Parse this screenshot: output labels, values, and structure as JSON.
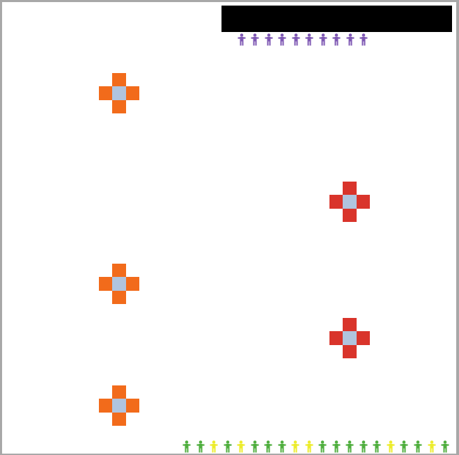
{
  "colors": {
    "border": "#a8a8a8",
    "top_bar": "#000000",
    "cross_center": "#b0c4de",
    "orange_cross": "#f26b1b",
    "red_cross": "#d9342b",
    "purple_person": "#7e57b3",
    "green_person": "#4fae3e",
    "yellow_person": "#ecec2c"
  },
  "crosses": [
    {
      "color": "orange"
    },
    {
      "color": "red"
    },
    {
      "color": "orange"
    },
    {
      "color": "red"
    },
    {
      "color": "orange"
    }
  ],
  "top_people": {
    "count": 10,
    "color": "purple",
    "icon": "person-icon"
  },
  "bottom_people": {
    "icon": "person-icon",
    "sequence": [
      "green",
      "green",
      "yellow",
      "green",
      "yellow",
      "green",
      "green",
      "green",
      "yellow",
      "yellow",
      "green",
      "green",
      "green",
      "green",
      "green",
      "yellow",
      "green",
      "green",
      "yellow",
      "green"
    ]
  }
}
